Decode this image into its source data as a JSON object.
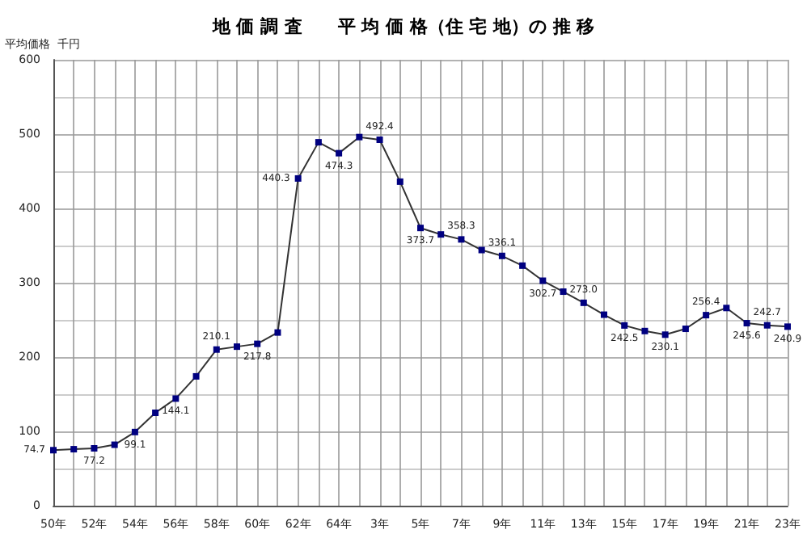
{
  "chart_data": {
    "type": "line",
    "title": "地 価 調 査　　平 均 価 格（住 宅 地）の 推 移",
    "ylabel": "平均価格  千円",
    "categories": [
      "50年",
      null,
      "52年",
      null,
      "54年",
      null,
      "56年",
      null,
      "58年",
      null,
      "60年",
      null,
      "62年",
      null,
      "64年",
      null,
      "3年",
      null,
      "5年",
      null,
      "7年",
      null,
      "9年",
      null,
      "11年",
      null,
      "13年",
      null,
      "15年",
      null,
      "17年",
      null,
      "19年",
      null,
      "21年",
      null,
      "23年"
    ],
    "series": [
      {
        "color": "#000080",
        "values": [
          74.7,
          76,
          77.2,
          82,
          99.1,
          125,
          144.1,
          174,
          210.1,
          214,
          217.8,
          233,
          440.3,
          489,
          474.3,
          496,
          492.4,
          436,
          373.7,
          365,
          358.3,
          344,
          336.1,
          323,
          302.7,
          288,
          273.0,
          257,
          242.5,
          235,
          230.1,
          238,
          256.4,
          266,
          245.6,
          242.7,
          240.9
        ],
        "value_labels": [
          "74.7",
          null,
          "77.2",
          null,
          "99.1",
          null,
          "144.1",
          null,
          "210.1",
          null,
          "217.8",
          null,
          "440.3",
          null,
          "474.3",
          null,
          "492.4",
          null,
          "373.7",
          null,
          "358.3",
          null,
          "336.1",
          null,
          "302.7",
          null,
          "273.0",
          null,
          "242.5",
          null,
          "230.1",
          null,
          "256.4",
          null,
          "245.6",
          "242.7",
          "240.9"
        ]
      }
    ],
    "ylim": [
      0,
      600
    ],
    "yticks": [
      0,
      100,
      200,
      300,
      400,
      500,
      600
    ],
    "grid": true,
    "marker": "square",
    "line_style": "solid"
  }
}
